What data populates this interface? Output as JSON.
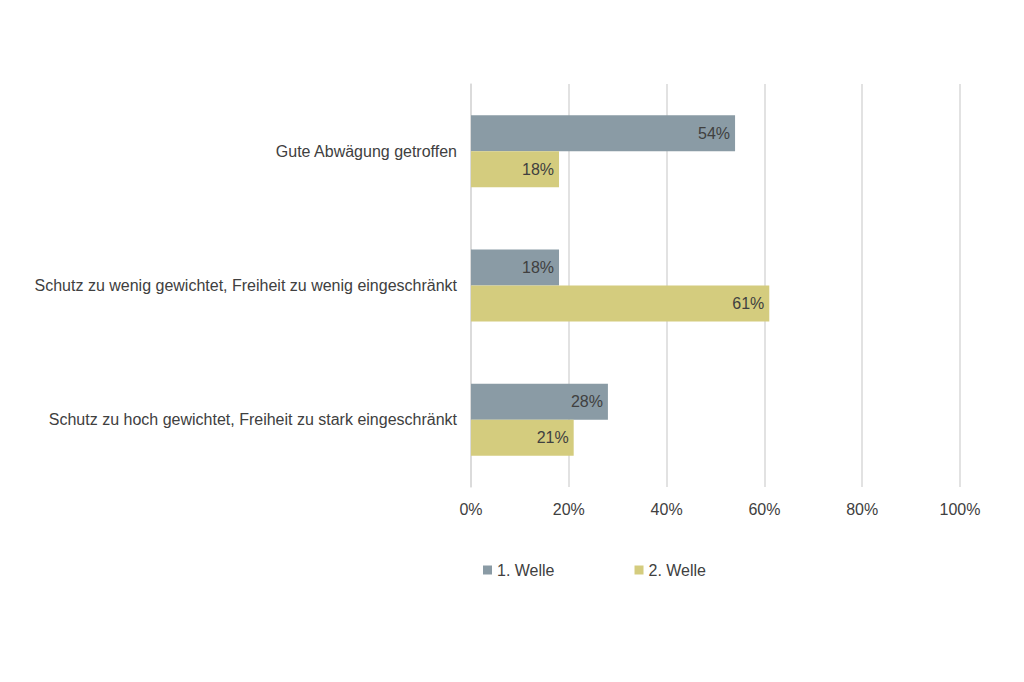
{
  "chart_data": {
    "type": "bar",
    "orientation": "horizontal",
    "categories": [
      "Gute Abwägung getroffen",
      "Schutz zu wenig gewichtet, Freiheit zu wenig eingeschränkt",
      "Schutz zu hoch gewichtet, Freiheit zu stark eingeschränkt"
    ],
    "series": [
      {
        "name": "1. Welle",
        "color": "#8a9ba5",
        "values": [
          54,
          18,
          28
        ],
        "value_labels": [
          "54%",
          "18%",
          "28%"
        ]
      },
      {
        "name": "2. Welle",
        "color": "#d4cc7e",
        "values": [
          18,
          61,
          21
        ],
        "value_labels": [
          "18%",
          "61%",
          "21%"
        ]
      }
    ],
    "xlim": [
      0,
      100
    ],
    "xticks": [
      {
        "value": 0,
        "label": "0%"
      },
      {
        "value": 20,
        "label": "20%"
      },
      {
        "value": 40,
        "label": "40%"
      },
      {
        "value": 60,
        "label": "60%"
      },
      {
        "value": 80,
        "label": "80%"
      },
      {
        "value": 100,
        "label": "100%"
      }
    ],
    "grid": true,
    "legend": "bottom",
    "data_labels": true
  }
}
